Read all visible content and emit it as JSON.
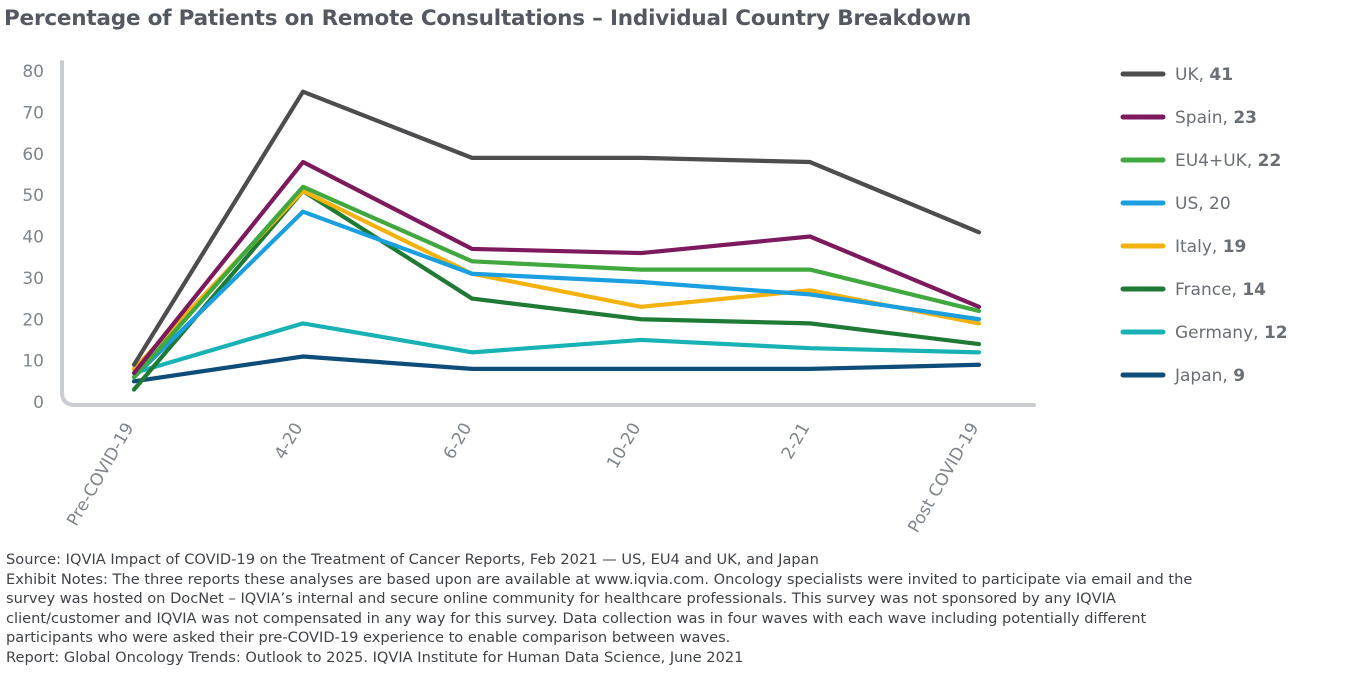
{
  "title": "Percentage of Patients on Remote Consultations – Individual Country Breakdown",
  "chart_data": {
    "type": "line",
    "title": "Percentage of Patients on Remote Consultations – Individual Country Breakdown",
    "xlabel": "",
    "ylabel": "",
    "categories": [
      "Pre-COVID-19",
      "4-20",
      "6-20",
      "10-20",
      "2-21",
      "Post COVID-19"
    ],
    "ylim": [
      0,
      80
    ],
    "yticks": [
      "0",
      "10",
      "20",
      "30",
      "40",
      "50",
      "60",
      "70",
      "80"
    ],
    "grid": false,
    "legend_position": "right",
    "series": [
      {
        "name": "UK",
        "legend_value": "41",
        "value_bold": true,
        "color": "#4d4d4f",
        "values": [
          9,
          75,
          59,
          59,
          58,
          41
        ]
      },
      {
        "name": "Spain",
        "legend_value": "23",
        "value_bold": true,
        "color": "#7d1a5e",
        "values": [
          7,
          58,
          37,
          36,
          40,
          23
        ]
      },
      {
        "name": "EU4+UK",
        "legend_value": "22",
        "value_bold": true,
        "color": "#40a83f",
        "values": [
          6,
          52,
          34,
          32,
          32,
          22
        ]
      },
      {
        "name": "US",
        "legend_value": "20",
        "value_bold": false,
        "color": "#1a9fe0",
        "values": [
          6,
          46,
          31,
          29,
          26,
          20
        ]
      },
      {
        "name": "Italy",
        "legend_value": "19",
        "value_bold": true,
        "color": "#f3b20e",
        "values": [
          8,
          51,
          31,
          23,
          27,
          19
        ]
      },
      {
        "name": "France",
        "legend_value": "14",
        "value_bold": true,
        "color": "#1e7a34",
        "values": [
          3,
          51,
          25,
          20,
          19,
          14
        ]
      },
      {
        "name": "Germany",
        "legend_value": "12",
        "value_bold": true,
        "color": "#18b2b5",
        "values": [
          7,
          19,
          12,
          15,
          13,
          12
        ]
      },
      {
        "name": "Japan",
        "legend_value": "9",
        "value_bold": true,
        "color": "#0e4d7a",
        "values": [
          5,
          11,
          8,
          8,
          8,
          9
        ]
      }
    ]
  },
  "notes": {
    "source": "Source: IQVIA Impact of COVID-19 on the Treatment of Cancer Reports, Feb 2021 — US, EU4 and UK, and Japan",
    "exhibit_line1": "Exhibit Notes: The three reports these analyses are based upon are available at www.iqvia.com. Oncology specialists were invited to participate via email and the",
    "exhibit_line2": "survey was hosted on DocNet – IQVIA’s internal and secure online community for healthcare professionals. This survey was not sponsored by any IQVIA",
    "exhibit_line3": "client/customer and IQVIA was not compensated in any way for this survey. Data collection was in four waves with each wave including potentially different",
    "exhibit_line4": "participants who were asked their pre-COVID-19 experience to enable comparison between waves.",
    "report": "Report: Global Oncology Trends: Outlook to 2025. IQVIA Institute for Human Data Science, June 2021"
  }
}
